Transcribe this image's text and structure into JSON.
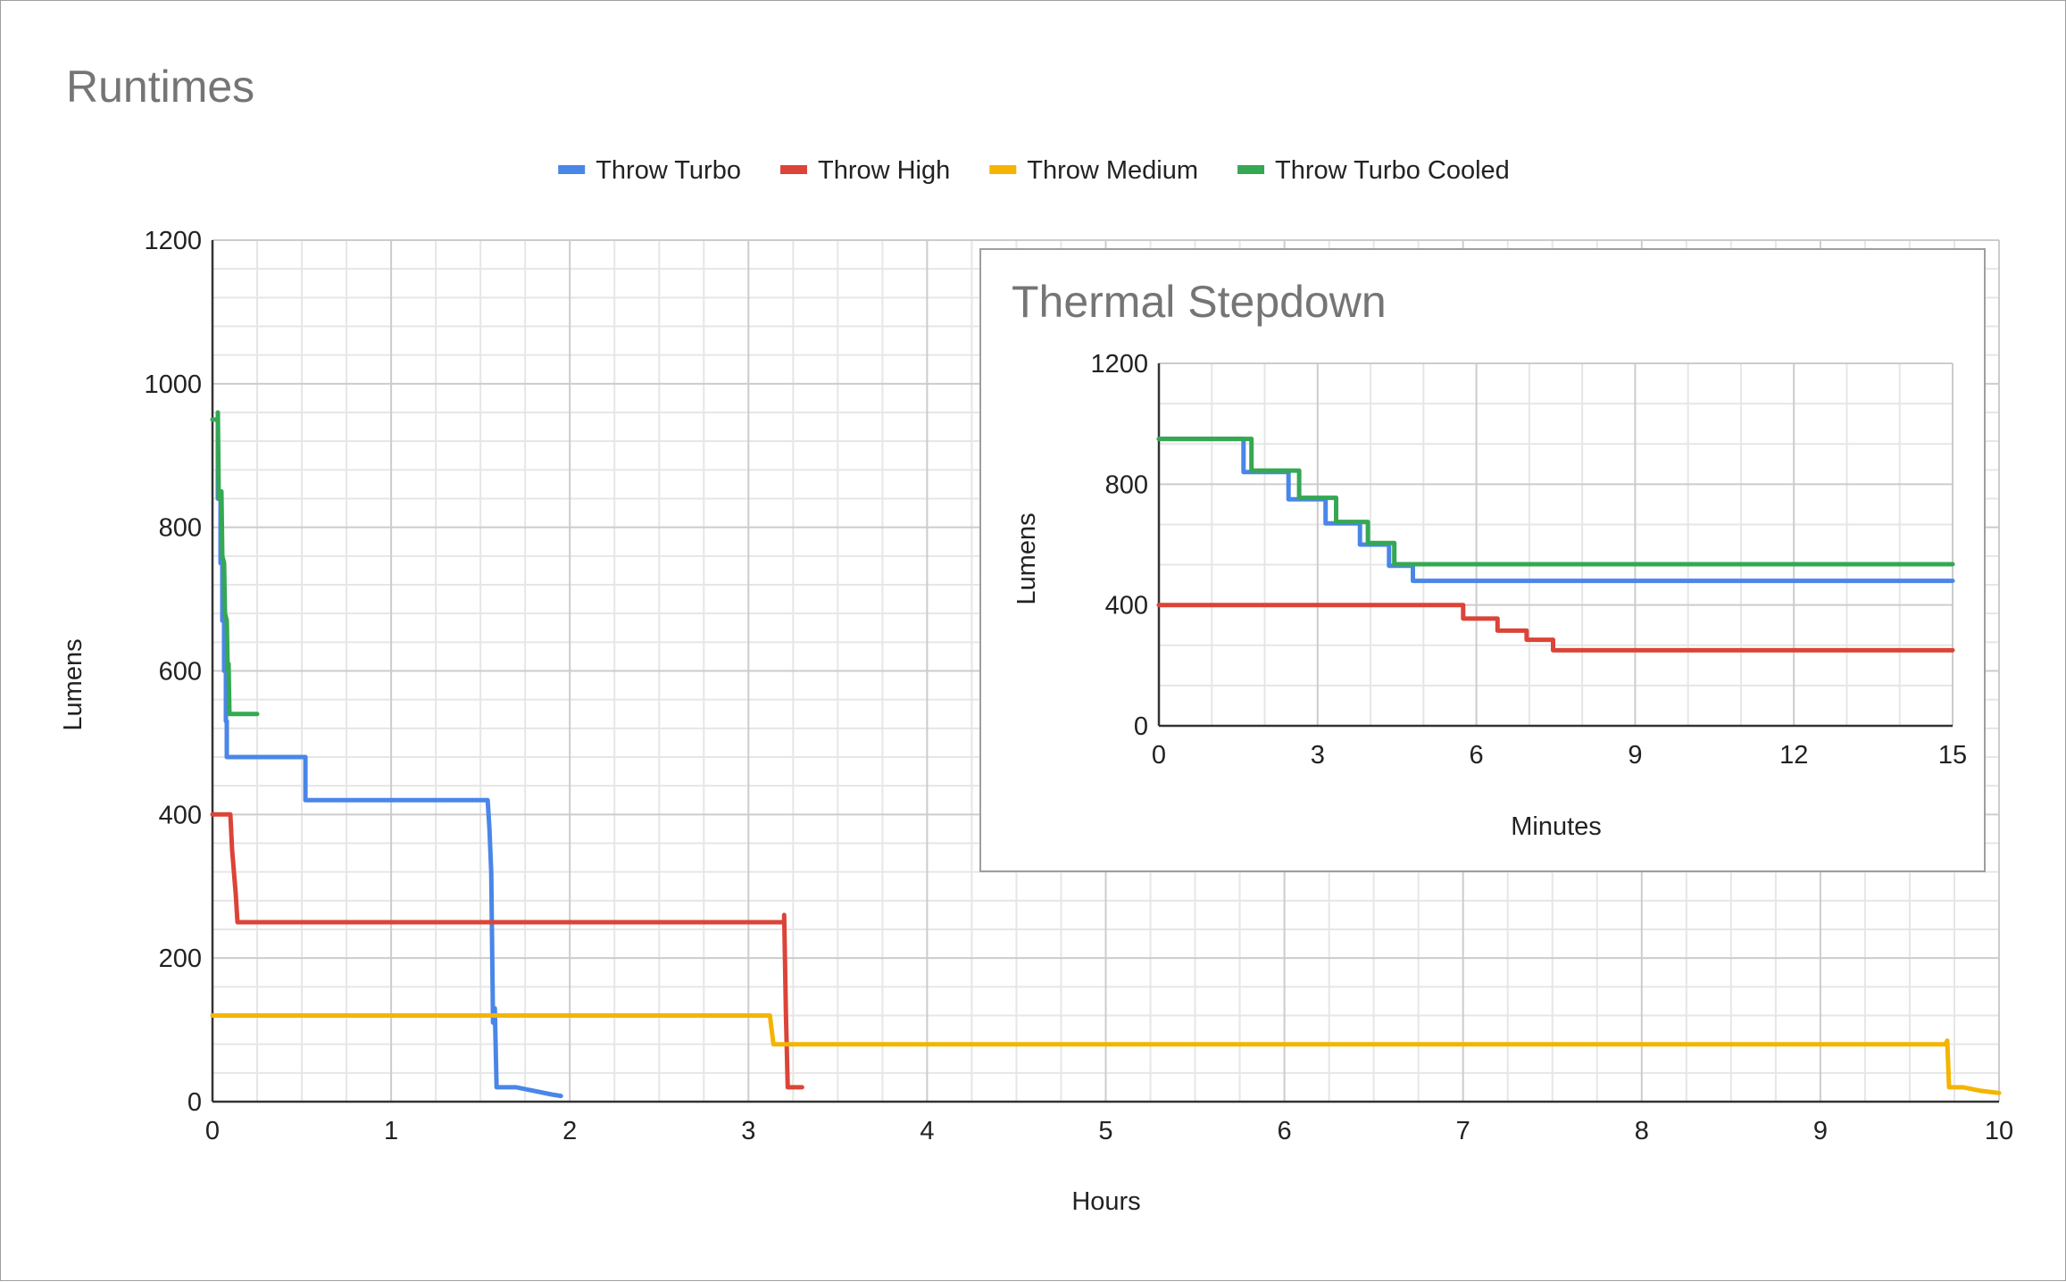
{
  "chart_data": [
    {
      "type": "line",
      "title": "Runtimes",
      "xlabel": "Hours",
      "ylabel": "Lumens",
      "xlim": [
        0,
        10
      ],
      "ylim": [
        0,
        1200
      ],
      "x_ticks": [
        0,
        1,
        2,
        3,
        4,
        5,
        6,
        7,
        8,
        9,
        10
      ],
      "y_ticks": [
        0,
        200,
        400,
        600,
        800,
        1000,
        1200
      ],
      "grid": true,
      "legend_position": "top",
      "series": [
        {
          "name": "Throw Turbo",
          "color": "#4a86e8",
          "points": [
            [
              0,
              950
            ],
            [
              0.03,
              950
            ],
            [
              0.03,
              840
            ],
            [
              0.045,
              840
            ],
            [
              0.045,
              750
            ],
            [
              0.055,
              750
            ],
            [
              0.055,
              670
            ],
            [
              0.065,
              670
            ],
            [
              0.065,
              600
            ],
            [
              0.075,
              600
            ],
            [
              0.075,
              530
            ],
            [
              0.08,
              530
            ],
            [
              0.08,
              480
            ],
            [
              0.52,
              480
            ],
            [
              0.52,
              420
            ],
            [
              1.54,
              420
            ],
            [
              1.55,
              380
            ],
            [
              1.56,
              320
            ],
            [
              1.57,
              110
            ],
            [
              1.58,
              130
            ],
            [
              1.59,
              20
            ],
            [
              1.7,
              20
            ],
            [
              1.8,
              15
            ],
            [
              1.9,
              10
            ],
            [
              1.95,
              8
            ]
          ]
        },
        {
          "name": "Throw High",
          "color": "#db4437",
          "points": [
            [
              0,
              400
            ],
            [
              0.1,
              400
            ],
            [
              0.11,
              350
            ],
            [
              0.12,
              320
            ],
            [
              0.13,
              290
            ],
            [
              0.14,
              250
            ],
            [
              3.2,
              250
            ],
            [
              3.2,
              260
            ],
            [
              3.21,
              120
            ],
            [
              3.22,
              20
            ],
            [
              3.3,
              20
            ]
          ]
        },
        {
          "name": "Throw Medium",
          "color": "#f4b400",
          "points": [
            [
              0,
              120
            ],
            [
              3.12,
              120
            ],
            [
              3.14,
              80
            ],
            [
              9.7,
              80
            ],
            [
              9.71,
              85
            ],
            [
              9.72,
              20
            ],
            [
              9.8,
              20
            ],
            [
              9.9,
              15
            ],
            [
              10,
              12
            ]
          ]
        },
        {
          "name": "Throw Turbo Cooled",
          "color": "#34a853",
          "points": [
            [
              0,
              950
            ],
            [
              0.03,
              950
            ],
            [
              0.03,
              960
            ],
            [
              0.035,
              840
            ],
            [
              0.05,
              850
            ],
            [
              0.055,
              760
            ],
            [
              0.065,
              750
            ],
            [
              0.07,
              680
            ],
            [
              0.08,
              670
            ],
            [
              0.085,
              600
            ],
            [
              0.09,
              610
            ],
            [
              0.095,
              540
            ],
            [
              0.25,
              540
            ]
          ]
        }
      ]
    },
    {
      "type": "line",
      "title": "Thermal Stepdown",
      "xlabel": "Minutes",
      "ylabel": "Lumens",
      "xlim": [
        0,
        15
      ],
      "ylim": [
        0,
        1200
      ],
      "x_ticks": [
        0,
        3,
        6,
        9,
        12,
        15
      ],
      "y_ticks": [
        0,
        400,
        800,
        1200
      ],
      "grid": true,
      "legend_position": "none",
      "series": [
        {
          "name": "Throw Turbo",
          "color": "#4a86e8",
          "points": [
            [
              0,
              950
            ],
            [
              1.6,
              950
            ],
            [
              1.6,
              840
            ],
            [
              2.45,
              840
            ],
            [
              2.45,
              750
            ],
            [
              3.15,
              750
            ],
            [
              3.15,
              670
            ],
            [
              3.8,
              670
            ],
            [
              3.8,
              600
            ],
            [
              4.35,
              600
            ],
            [
              4.35,
              530
            ],
            [
              4.8,
              530
            ],
            [
              4.8,
              480
            ],
            [
              15,
              480
            ]
          ]
        },
        {
          "name": "Throw High",
          "color": "#db4437",
          "points": [
            [
              0,
              400
            ],
            [
              5.75,
              400
            ],
            [
              5.75,
              355
            ],
            [
              6.4,
              355
            ],
            [
              6.4,
              315
            ],
            [
              6.95,
              315
            ],
            [
              6.95,
              285
            ],
            [
              7.45,
              285
            ],
            [
              7.45,
              250
            ],
            [
              15,
              250
            ]
          ]
        },
        {
          "name": "Throw Turbo Cooled",
          "color": "#34a853",
          "points": [
            [
              0,
              950
            ],
            [
              1.75,
              950
            ],
            [
              1.75,
              845
            ],
            [
              2.65,
              845
            ],
            [
              2.65,
              755
            ],
            [
              3.35,
              755
            ],
            [
              3.35,
              675
            ],
            [
              3.95,
              675
            ],
            [
              3.95,
              605
            ],
            [
              4.45,
              605
            ],
            [
              4.45,
              535
            ],
            [
              15,
              535
            ]
          ]
        }
      ]
    }
  ]
}
